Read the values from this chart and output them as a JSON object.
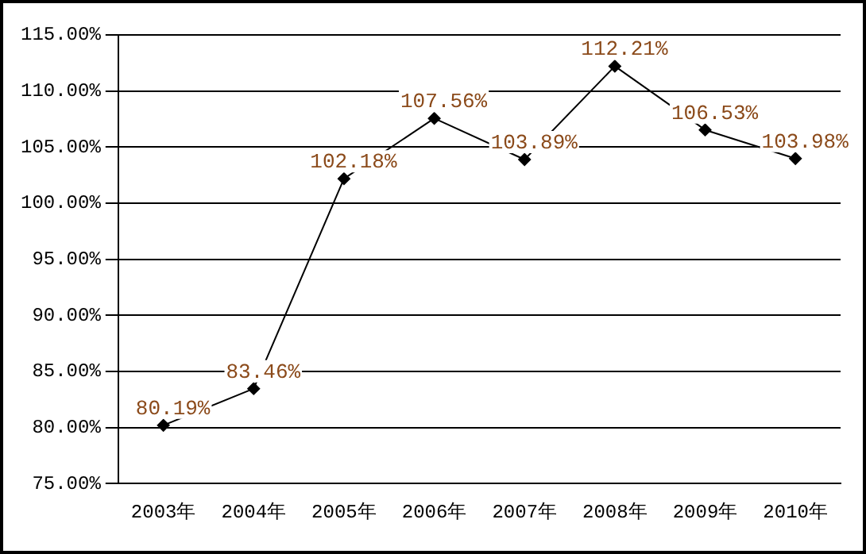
{
  "chart_data": {
    "type": "line",
    "categories": [
      "2003年",
      "2004年",
      "2005年",
      "2006年",
      "2007年",
      "2008年",
      "2009年",
      "2010年"
    ],
    "series": [
      {
        "color": "#000000",
        "values": [
          80.19,
          83.46,
          102.18,
          107.56,
          103.89,
          112.21,
          106.53,
          103.98
        ],
        "value_labels": [
          "80.19%",
          "83.46%",
          "102.18%",
          "107.56%",
          "103.89%",
          "112.21%",
          "106.53%",
          "103.98%"
        ]
      }
    ],
    "ylim": [
      75,
      115
    ],
    "yticks": [
      {
        "value": 75,
        "label": "75.00%"
      },
      {
        "value": 80,
        "label": "80.00%"
      },
      {
        "value": 85,
        "label": "85.00%"
      },
      {
        "value": 90,
        "label": "90.00%"
      },
      {
        "value": 95,
        "label": "95.00%"
      },
      {
        "value": 100,
        "label": "100.00%"
      },
      {
        "value": 105,
        "label": "105.00%"
      },
      {
        "value": 110,
        "label": "110.00%"
      },
      {
        "value": 115,
        "label": "115.00%"
      }
    ],
    "grid": "y",
    "legend": false,
    "marker": "diamond",
    "line_style": "solid"
  }
}
